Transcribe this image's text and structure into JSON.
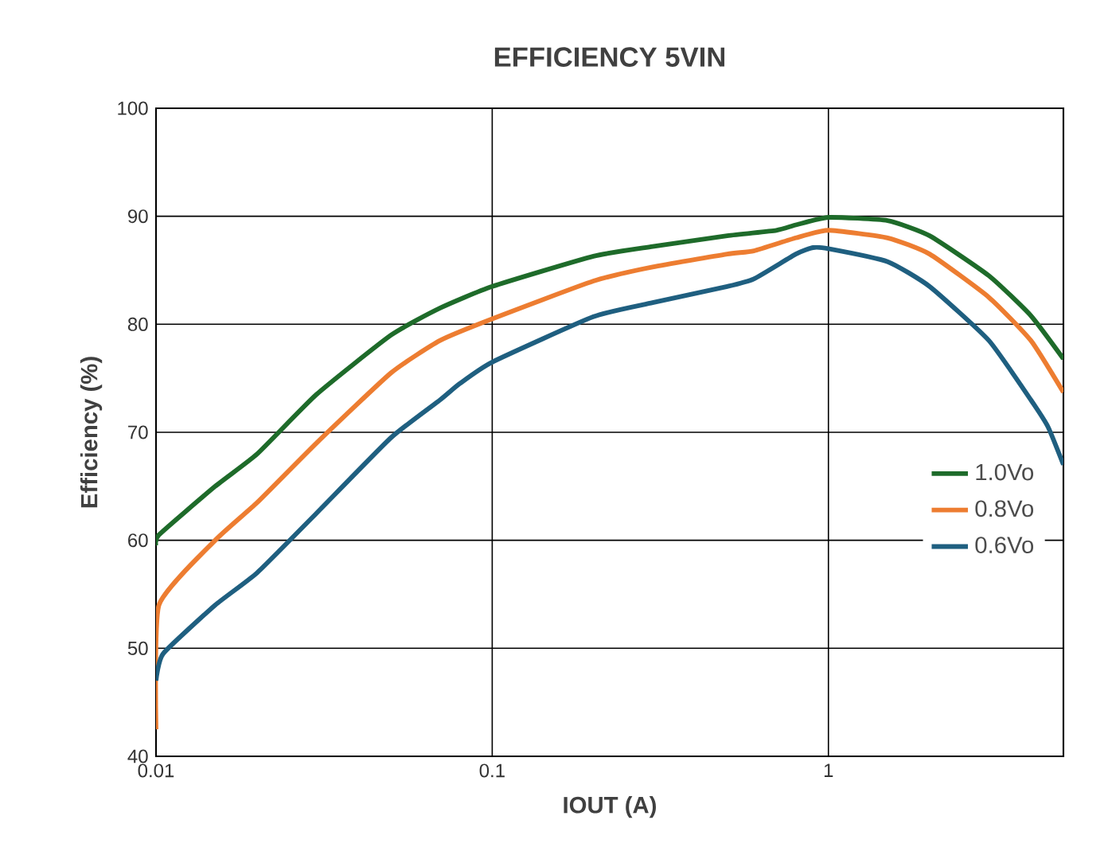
{
  "chart_data": {
    "type": "line",
    "title": "EFFICIENCY 5VIN",
    "xlabel": "IOUT (A)",
    "ylabel": "Efficiency (%)",
    "log": "x",
    "grid": true,
    "legend": "right",
    "xlim": [
      0.01,
      5
    ],
    "xticks": [
      0.01,
      0.1,
      1
    ],
    "ylim": [
      40,
      100
    ],
    "yticks": [
      40,
      50,
      60,
      70,
      80,
      90,
      100
    ],
    "series": [
      {
        "name": "1.0Vo",
        "color": "#1e6b2a",
        "x": [
          0.01,
          0.0102,
          0.015,
          0.02,
          0.03,
          0.05,
          0.07,
          0.1,
          0.2,
          0.3,
          0.5,
          0.7,
          0.8,
          1,
          1.5,
          2,
          3,
          4,
          5
        ],
        "values": [
          59.5,
          60.5,
          65,
          68,
          73.5,
          79,
          81.5,
          83.5,
          86.3,
          87.2,
          88.2,
          88.7,
          89.2,
          89.9,
          89.6,
          88.2,
          84.5,
          80.8,
          76.8
        ]
      },
      {
        "name": "0.8Vo",
        "color": "#ed7d31",
        "x": [
          0.01,
          0.0102,
          0.015,
          0.02,
          0.03,
          0.05,
          0.07,
          0.1,
          0.2,
          0.3,
          0.5,
          0.6,
          0.8,
          1,
          1.5,
          2,
          3,
          4,
          5
        ],
        "values": [
          42.5,
          54,
          60,
          63.5,
          69,
          75.5,
          78.5,
          80.5,
          84,
          85.3,
          86.5,
          86.8,
          88,
          88.7,
          88,
          86.5,
          82.5,
          78.5,
          73.7
        ]
      },
      {
        "name": "0.6Vo",
        "color": "#1f5f80",
        "x": [
          0.01,
          0.0105,
          0.015,
          0.02,
          0.03,
          0.05,
          0.07,
          0.08,
          0.1,
          0.2,
          0.3,
          0.5,
          0.6,
          0.8,
          0.9,
          1,
          1.5,
          2,
          3,
          4,
          4.5,
          5
        ],
        "values": [
          47,
          49.5,
          54,
          57,
          62.5,
          69.5,
          73,
          74.5,
          76.5,
          80.7,
          82,
          83.5,
          84.2,
          86.5,
          87.1,
          87,
          85.8,
          83.5,
          78.5,
          73,
          70.5,
          67
        ]
      }
    ]
  }
}
